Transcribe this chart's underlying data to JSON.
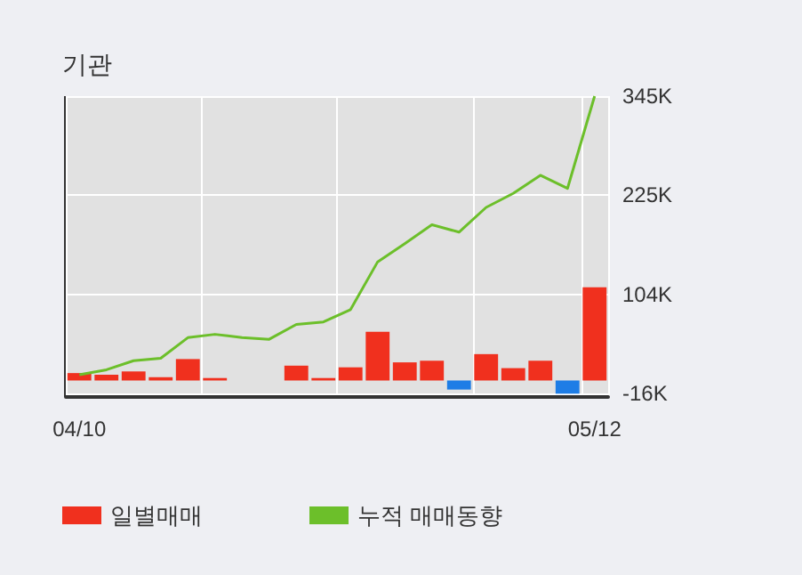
{
  "chart_data": {
    "type": "bar",
    "title": "기관",
    "categories": [
      "04/10",
      null,
      null,
      null,
      null,
      null,
      null,
      null,
      null,
      null,
      null,
      null,
      null,
      null,
      null,
      null,
      null,
      null,
      null,
      "05/12"
    ],
    "series": [
      {
        "name": "일별매매",
        "color": "#f0301e",
        "colors": [
          "#f0301e",
          "#f0301e",
          "#f0301e",
          "#f0301e",
          "#f0301e",
          "#f0301e",
          "#f0301e",
          "#f0301e",
          "#f0301e",
          "#f0301e",
          "#f0301e",
          "#f0301e",
          "#f0301e",
          "#f0301e",
          "#1e7de6",
          "#f0301e",
          "#f0301e",
          "#f0301e",
          "#1e7de6",
          "#f0301e"
        ],
        "values": [
          9,
          7,
          11,
          4,
          26,
          3,
          0,
          0,
          18,
          3,
          16,
          59,
          22,
          24,
          -11,
          32,
          15,
          24,
          -16,
          113
        ]
      },
      {
        "name": "누적 매매동향",
        "type": "line",
        "color": "#6cbf2a",
        "values": [
          7,
          13,
          24,
          27,
          52,
          56,
          52,
          50,
          68,
          71,
          86,
          144,
          166,
          189,
          180,
          210,
          227,
          249,
          233,
          345
        ]
      }
    ],
    "ylim": [
      -20,
      345
    ],
    "yticks": [
      {
        "value": -16,
        "label": "-16K"
      },
      {
        "value": 104,
        "label": "104K"
      },
      {
        "value": 225,
        "label": "225K"
      },
      {
        "value": 345,
        "label": "345K"
      }
    ],
    "grid": true,
    "legend": "bottom",
    "marker": "none",
    "line_style": "solid"
  }
}
